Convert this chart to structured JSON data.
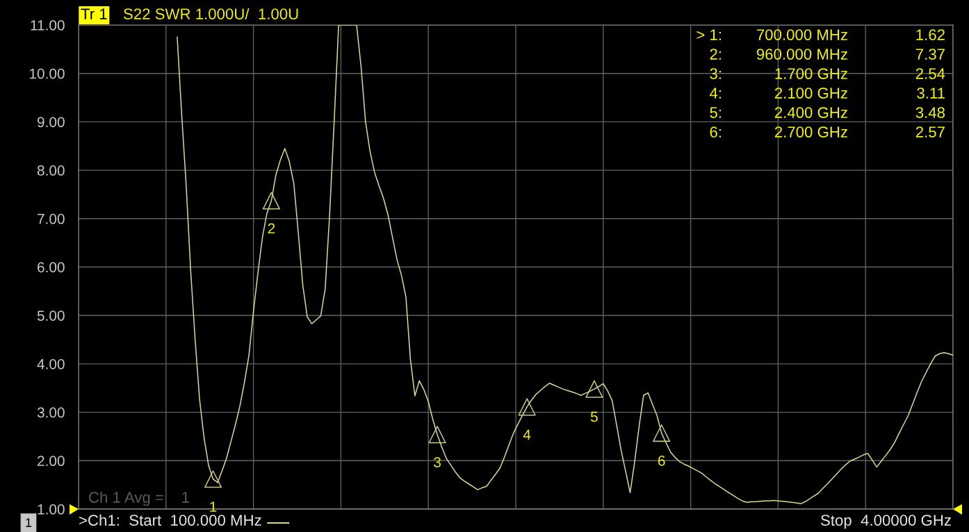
{
  "chart_data": {
    "type": "line",
    "title": "Tr 1",
    "subtitle": "S22 SWR 1.000U/  1.00U",
    "annotations": [
      "> 1:  700.000 MHz  1.62",
      "2:  960.000 MHz  7.37",
      "3:  1.700 GHz  2.54",
      "4:  2.100 GHz  3.11",
      "5:  2.400 GHz  3.48",
      "6:  2.700 GHz  2.57",
      "1",
      "2",
      "3",
      "4",
      "5",
      "6",
      "Ch 1 Avg =    1",
      "1",
      ">Ch1:  Start  100.000 MHz",
      "Stop  4.00000 GHz"
    ],
    "categories": [
      null,
      null,
      null,
      null,
      null,
      null,
      null,
      null,
      null,
      null,
      null,
      null,
      null,
      null,
      null,
      null,
      null,
      null,
      null,
      null,
      null,
      null,
      null,
      null,
      null,
      null,
      null,
      null,
      null,
      null,
      null,
      null,
      null,
      null,
      null,
      null,
      null,
      null,
      null,
      null,
      null,
      null,
      null,
      null,
      null,
      null,
      null,
      null,
      null,
      null,
      null,
      null,
      null,
      null,
      null,
      null,
      null,
      null,
      null,
      null,
      null,
      null,
      null,
      null,
      null,
      null,
      null,
      null,
      null,
      null,
      null,
      null,
      null,
      null,
      null,
      null,
      null,
      null,
      null,
      null,
      null,
      null,
      null,
      null,
      null,
      null,
      null,
      null,
      null,
      null,
      null,
      null,
      null,
      null,
      null,
      null,
      null,
      null,
      null,
      null,
      null,
      null,
      null,
      null,
      null,
      null,
      null,
      null,
      null,
      null,
      null,
      null,
      null,
      null,
      null,
      null,
      null,
      null,
      null,
      null,
      null,
      null,
      null,
      null,
      null,
      null,
      null,
      null,
      null,
      null,
      null,
      null,
      null,
      null,
      null,
      null,
      null,
      null,
      null,
      null,
      null,
      null,
      null,
      null,
      null,
      null,
      null,
      null,
      null,
      null,
      null,
      null,
      null,
      null,
      null,
      null,
      null,
      null,
      null,
      null,
      null,
      null,
      null,
      null,
      null,
      null,
      null,
      null,
      null,
      null,
      null,
      null,
      null,
      null,
      null,
      null,
      null,
      null,
      null,
      null,
      null,
      null,
      null,
      null,
      null,
      null,
      null,
      null,
      null,
      null,
      null,
      null,
      null,
      null,
      null,
      null
    ],
    "ylim": [
      1,
      11
    ],
    "yticks": [
      {
        "value": 11,
        "label": "11.00"
      },
      {
        "value": 10,
        "label": "10.00"
      },
      {
        "value": 9,
        "label": "9.00"
      },
      {
        "value": 8,
        "label": "8.00"
      },
      {
        "value": 7,
        "label": "7.00"
      },
      {
        "value": 6,
        "label": "6.00"
      },
      {
        "value": 5,
        "label": "5.00"
      },
      {
        "value": 4,
        "label": "4.00"
      },
      {
        "value": 3,
        "label": "3.00"
      },
      {
        "value": 2,
        "label": "2.00"
      },
      {
        "value": 1,
        "label": "1.00"
      }
    ],
    "grid": true,
    "tick_labels": "y",
    "series": [
      {
        "color": "#d8d890",
        "values": [
          null,
          null,
          null,
          null,
          null,
          null,
          null,
          null,
          null,
          null,
          null,
          null,
          null,
          null,
          null,
          null,
          null,
          null,
          null,
          null,
          null,
          null,
          10.75,
          9.15,
          7.69,
          5.93,
          4.5,
          3.26,
          2.46,
          1.9,
          1.62,
          1.55,
          1.79,
          2.05,
          2.4,
          2.75,
          3.14,
          3.62,
          4.18,
          5.08,
          5.88,
          6.61,
          7.11,
          7.37,
          7.9,
          8.21,
          8.45,
          8.18,
          7.73,
          6.71,
          5.63,
          4.97,
          4.83,
          4.91,
          4.99,
          5.55,
          7.1,
          9.0,
          11,
          11,
          11,
          11,
          11,
          10.14,
          9.0,
          8.39,
          7.96,
          7.68,
          7.42,
          7.08,
          6.62,
          6.16,
          5.83,
          5.38,
          4.1,
          3.34,
          3.65,
          3.47,
          3.22,
          2.85,
          2.54,
          2.28,
          2.05,
          1.91,
          1.77,
          1.65,
          1.58,
          1.52,
          1.46,
          1.4,
          1.44,
          1.47,
          1.6,
          1.72,
          1.85,
          2.08,
          2.33,
          2.57,
          2.76,
          2.94,
          3.11,
          3.25,
          3.37,
          3.45,
          3.53,
          3.6,
          3.56,
          3.52,
          3.48,
          3.45,
          3.42,
          3.39,
          3.35,
          3.39,
          3.43,
          3.48,
          3.53,
          3.59,
          3.44,
          3.24,
          2.73,
          2.21,
          1.78,
          1.34,
          1.97,
          2.71,
          3.35,
          3.4,
          3.16,
          2.93,
          2.57,
          2.37,
          2.18,
          2.07,
          1.98,
          1.93,
          1.89,
          1.84,
          1.79,
          1.74,
          1.66,
          1.59,
          1.52,
          1.46,
          1.4,
          1.34,
          1.28,
          1.22,
          1.17,
          1.14,
          1.15,
          1.15,
          1.16,
          1.17,
          1.17,
          1.18,
          1.17,
          1.16,
          1.15,
          1.14,
          1.13,
          1.11,
          1.15,
          1.21,
          1.27,
          1.33,
          1.43,
          1.52,
          1.62,
          1.72,
          1.82,
          1.91,
          1.99,
          2.03,
          2.07,
          2.12,
          2.15,
          2.01,
          1.87,
          1.99,
          2.11,
          2.23,
          2.38,
          2.57,
          2.75,
          2.93,
          3.17,
          3.41,
          3.64,
          3.82,
          4.0,
          4.16,
          4.21,
          4.23,
          4.21,
          4.18
        ]
      },
      {
        "type": "scatter",
        "color": "#c8c880",
        "marker": "triangle",
        "values": [
          null,
          null,
          null,
          null,
          null,
          null,
          null,
          null,
          null,
          null,
          null,
          null,
          null,
          null,
          null,
          null,
          null,
          null,
          null,
          null,
          null,
          null,
          null,
          null,
          null,
          null,
          null,
          null,
          null,
          null,
          1.62,
          null,
          null,
          null,
          null,
          null,
          null,
          null,
          null,
          null,
          null,
          null,
          null,
          7.37,
          null,
          null,
          null,
          null,
          null,
          null,
          null,
          null,
          null,
          null,
          null,
          null,
          null,
          null,
          null,
          null,
          null,
          null,
          null,
          null,
          null,
          null,
          null,
          null,
          null,
          null,
          null,
          null,
          null,
          null,
          null,
          null,
          null,
          null,
          null,
          null,
          2.54,
          null,
          null,
          null,
          null,
          null,
          null,
          null,
          null,
          null,
          null,
          null,
          null,
          null,
          null,
          null,
          null,
          null,
          null,
          null,
          3.11,
          null,
          null,
          null,
          null,
          null,
          null,
          null,
          null,
          null,
          null,
          null,
          null,
          null,
          null,
          3.48,
          null,
          null,
          null,
          null,
          null,
          null,
          null,
          null,
          null,
          null,
          null,
          null,
          null,
          null,
          2.57,
          null,
          null,
          null,
          null,
          null,
          null,
          null,
          null,
          null,
          null,
          null,
          null,
          null,
          null,
          null,
          null,
          null,
          null,
          null,
          null,
          null,
          null,
          null,
          null,
          null,
          null,
          null,
          null,
          null,
          null,
          null,
          null,
          null,
          null,
          null,
          null,
          null,
          null,
          null,
          null,
          null,
          null,
          null,
          null,
          null,
          null,
          null,
          null,
          null,
          null,
          null,
          null,
          null,
          null,
          null,
          null,
          null,
          null,
          null,
          null,
          null,
          null,
          null,
          null,
          null
        ]
      }
    ]
  }
}
